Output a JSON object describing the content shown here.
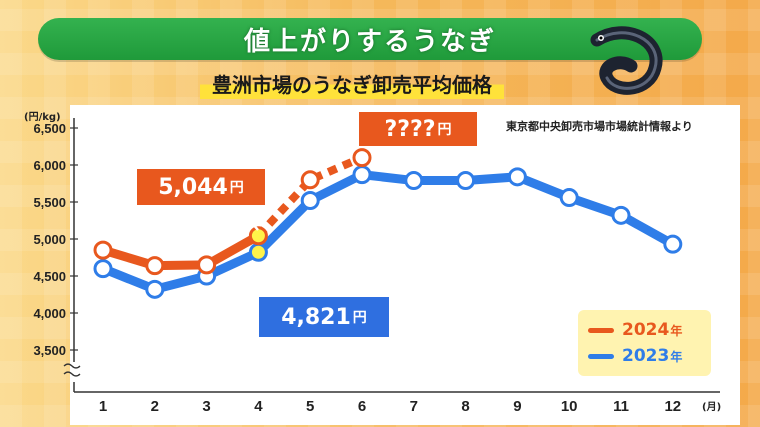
{
  "title": "値上がりするうなぎ",
  "subtitle": "豊洲市場のうなぎ卸売平均価格",
  "source": "東京都中央卸売市場市場統計情報より",
  "icons": {
    "eel": "eel-icon"
  },
  "colors": {
    "2024": "#e8581e",
    "2023": "#2f7de8",
    "title_green": "#26a544",
    "highlight": "#ffe23a"
  },
  "callouts": {
    "price_2024_value": "5,044",
    "price_2023_value": "4,821",
    "unknown_value": "????",
    "yen": "円"
  },
  "legend": {
    "s2024": "2024",
    "s2023": "2023",
    "suffix": "年"
  },
  "chart_data": {
    "type": "line",
    "y_unit_label": "(円/kg)",
    "x_unit_label": "(月)",
    "categories": [
      "1",
      "2",
      "3",
      "4",
      "5",
      "6",
      "7",
      "8",
      "9",
      "10",
      "11",
      "12"
    ],
    "y_ticks": [
      "6,500",
      "6,000",
      "5,500",
      "5,000",
      "4,500",
      "4,000",
      "3,500"
    ],
    "ylim": [
      3350,
      6500
    ],
    "axis_break": true,
    "series": [
      {
        "name": "2024年",
        "color": "#e8581e",
        "values": [
          4850,
          4640,
          4650,
          5044,
          5800,
          6100,
          null,
          null,
          null,
          null,
          null,
          null
        ],
        "dashed_from_index": 3
      },
      {
        "name": "2023年",
        "color": "#2f7de8",
        "values": [
          4600,
          4320,
          4500,
          4821,
          5520,
          5870,
          5790,
          5790,
          5840,
          5560,
          5320,
          4930
        ]
      }
    ]
  }
}
